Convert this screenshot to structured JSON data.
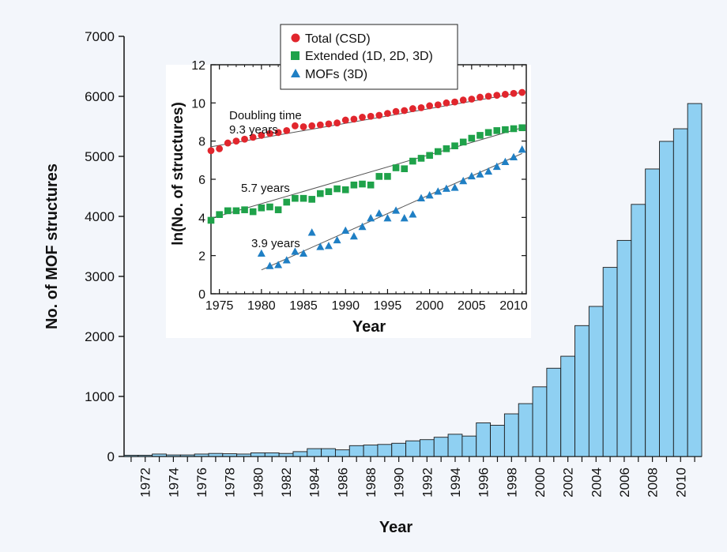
{
  "colors": {
    "background": "#f3f6fb",
    "bar_fill": "#8fd0f2",
    "bar_stroke": "#1a1a1a",
    "total_series": "#e1262d",
    "extended_series": "#1fa24a",
    "mofs_series": "#1f7fc4",
    "axis": "#111111"
  },
  "chart_data": [
    {
      "id": "main",
      "type": "bar",
      "xlabel": "Year",
      "ylabel": "No. of MOF structures",
      "ylim": [
        0,
        7000
      ],
      "yticks": [
        0,
        1000,
        2000,
        3000,
        4000,
        5000,
        6000,
        7000
      ],
      "ytick_labels": [
        "0",
        "1000",
        "2000",
        "3000",
        "4000",
        "5000",
        "6000",
        "7000"
      ],
      "categories": [
        "1971",
        "1972",
        "1973",
        "1974",
        "1975",
        "1976",
        "1977",
        "1978",
        "1979",
        "1980",
        "1981",
        "1982",
        "1983",
        "1984",
        "1985",
        "1986",
        "1987",
        "1988",
        "1989",
        "1990",
        "1991",
        "1992",
        "1993",
        "1994",
        "1995",
        "1996",
        "1997",
        "1998",
        "1999",
        "2000",
        "2001",
        "2002",
        "2003",
        "2004",
        "2005",
        "2006",
        "2007",
        "2008",
        "2009",
        "2010",
        "2011"
      ],
      "xtick_labels": [
        "1972",
        "1974",
        "1976",
        "1978",
        "1980",
        "1982",
        "1984",
        "1986",
        "1988",
        "1990",
        "1992",
        "1994",
        "1996",
        "1998",
        "2000",
        "2002",
        "2004",
        "2006",
        "2008",
        "2010"
      ],
      "values": [
        20,
        20,
        40,
        25,
        25,
        40,
        50,
        45,
        40,
        60,
        60,
        50,
        80,
        130,
        130,
        110,
        180,
        190,
        200,
        220,
        260,
        280,
        320,
        370,
        340,
        560,
        520,
        710,
        880,
        1160,
        1470,
        1670,
        2180,
        2500,
        3150,
        3600,
        4200,
        4790,
        5250,
        5460,
        5880
      ]
    },
    {
      "id": "inset",
      "type": "scatter",
      "xlabel": "Year",
      "ylabel": "ln(No. of structures)",
      "xlim": [
        1974,
        2011.5
      ],
      "ylim": [
        0,
        12
      ],
      "xticks": [
        1975,
        1980,
        1985,
        1990,
        1995,
        2000,
        2005,
        2010
      ],
      "xtick_labels": [
        "1975",
        "1980",
        "1985",
        "1990",
        "1995",
        "2000",
        "2005",
        "2010"
      ],
      "yticks": [
        0,
        2,
        4,
        6,
        8,
        10,
        12
      ],
      "ytick_labels": [
        "0",
        "2",
        "4",
        "6",
        "8",
        "10",
        "12"
      ],
      "legend_position": "top",
      "legend": [
        "Total (CSD)",
        "Extended (1D, 2D, 3D)",
        "MOFs (3D)"
      ],
      "annotations": [
        "Doubling time",
        "9.3 years",
        "5.7 years",
        "3.9 years"
      ],
      "series": [
        {
          "name": "Total (CSD)",
          "marker": "circle",
          "x": [
            1974,
            1975,
            1976,
            1977,
            1978,
            1979,
            1980,
            1981,
            1982,
            1983,
            1984,
            1985,
            1986,
            1987,
            1988,
            1989,
            1990,
            1991,
            1992,
            1993,
            1994,
            1995,
            1996,
            1997,
            1998,
            1999,
            2000,
            2001,
            2002,
            2003,
            2004,
            2005,
            2006,
            2007,
            2008,
            2009,
            2010,
            2011
          ],
          "y": [
            7.5,
            7.6,
            7.9,
            8.0,
            8.1,
            8.2,
            8.3,
            8.4,
            8.45,
            8.55,
            8.8,
            8.75,
            8.8,
            8.85,
            8.9,
            8.95,
            9.1,
            9.15,
            9.25,
            9.3,
            9.35,
            9.45,
            9.55,
            9.6,
            9.7,
            9.75,
            9.85,
            9.9,
            10.0,
            10.05,
            10.15,
            10.2,
            10.3,
            10.35,
            10.4,
            10.45,
            10.5,
            10.55
          ]
        },
        {
          "name": "Extended (1D, 2D, 3D)",
          "marker": "square",
          "x": [
            1974,
            1975,
            1976,
            1977,
            1978,
            1979,
            1980,
            1981,
            1982,
            1983,
            1984,
            1985,
            1986,
            1987,
            1988,
            1989,
            1990,
            1991,
            1992,
            1993,
            1994,
            1995,
            1996,
            1997,
            1998,
            1999,
            2000,
            2001,
            2002,
            2003,
            2004,
            2005,
            2006,
            2007,
            2008,
            2009,
            2010,
            2011
          ],
          "y": [
            3.85,
            4.15,
            4.35,
            4.35,
            4.4,
            4.3,
            4.5,
            4.55,
            4.4,
            4.8,
            5.0,
            5.0,
            4.95,
            5.25,
            5.35,
            5.5,
            5.45,
            5.7,
            5.75,
            5.7,
            6.15,
            6.15,
            6.6,
            6.55,
            6.95,
            7.1,
            7.25,
            7.45,
            7.6,
            7.75,
            7.95,
            8.15,
            8.3,
            8.45,
            8.55,
            8.6,
            8.65,
            8.7
          ]
        },
        {
          "name": "MOFs (3D)",
          "marker": "triangle",
          "x": [
            1980,
            1981,
            1982,
            1983,
            1984,
            1985,
            1986,
            1987,
            1988,
            1989,
            1990,
            1991,
            1992,
            1993,
            1994,
            1995,
            1996,
            1997,
            1998,
            1999,
            2000,
            2001,
            2002,
            2003,
            2004,
            2005,
            2006,
            2007,
            2008,
            2009,
            2010,
            2011
          ],
          "y": [
            2.1,
            1.45,
            1.5,
            1.75,
            2.2,
            2.1,
            3.2,
            2.45,
            2.5,
            2.8,
            3.3,
            3.0,
            3.5,
            3.95,
            4.2,
            3.95,
            4.35,
            3.95,
            4.15,
            5.0,
            5.15,
            5.35,
            5.5,
            5.55,
            5.9,
            6.15,
            6.25,
            6.4,
            6.65,
            6.9,
            7.15,
            7.55
          ]
        }
      ],
      "fit_lines": [
        {
          "x": [
            1974,
            2011
          ],
          "y": [
            7.7,
            10.55
          ]
        },
        {
          "x": [
            1974,
            2011
          ],
          "y": [
            3.95,
            8.7
          ]
        },
        {
          "x": [
            1980,
            2011
          ],
          "y": [
            1.25,
            7.35
          ]
        }
      ]
    }
  ]
}
